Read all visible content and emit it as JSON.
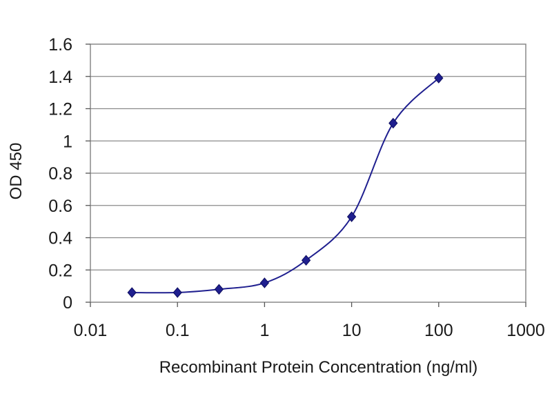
{
  "chart_data": {
    "type": "line",
    "xlabel": "Recombinant Protein Concentration (ng/ml)",
    "ylabel": "OD 450",
    "xscale": "log",
    "xlim": [
      0.01,
      1000
    ],
    "ylim": [
      0,
      1.6
    ],
    "x_ticks": [
      "0.01",
      "0.1",
      "1",
      "10",
      "100",
      "1000"
    ],
    "y_ticks": [
      "0",
      "0.2",
      "0.4",
      "0.6",
      "0.8",
      "1",
      "1.2",
      "1.4",
      "1.6"
    ],
    "grid": "horizontal",
    "legend": "none",
    "series": [
      {
        "x": [
          0.03,
          0.1,
          0.3,
          1,
          3,
          10,
          30,
          100
        ],
        "y": [
          0.06,
          0.06,
          0.08,
          0.12,
          0.26,
          0.53,
          1.11,
          1.39
        ],
        "color": "#1f1f8f"
      }
    ]
  }
}
